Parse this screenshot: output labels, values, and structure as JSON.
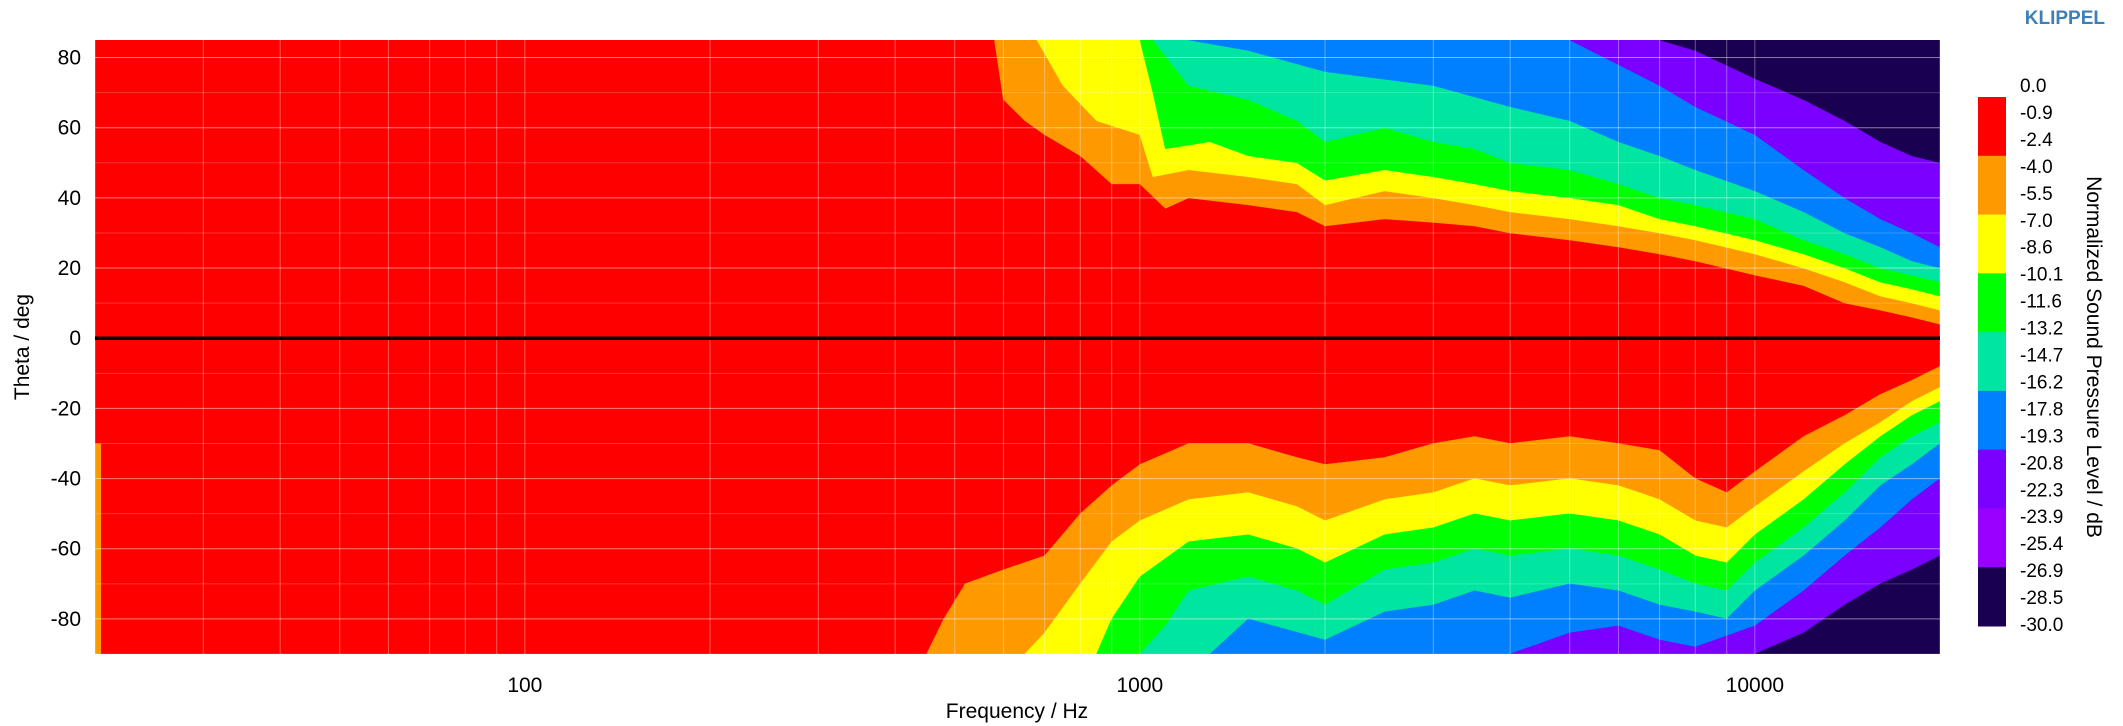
{
  "brand": "KLIPPEL",
  "colors": {
    "red": "#ff0000",
    "orange": "#ff9900",
    "yellow": "#ffff00",
    "green": "#00ff00",
    "teal": "#00e6a0",
    "blue": "#0080ff",
    "violet": "#7a00ff",
    "dark": "#1a0050",
    "zero_line": "#000000"
  },
  "chart_data": {
    "type": "heatmap",
    "title": "",
    "xlabel": "Frequency / Hz",
    "ylabel": "Theta / deg",
    "colorbar_label": "Normalized Sound Pressure Level / dB",
    "x_scale": "log",
    "xlim": [
      20,
      20000
    ],
    "ylim": [
      -90,
      85
    ],
    "x_ticks": [
      {
        "value": 100,
        "label": "100"
      },
      {
        "value": 1000,
        "label": "1000"
      },
      {
        "value": 10000,
        "label": "10000"
      }
    ],
    "y_ticks": [
      {
        "value": 80,
        "label": "80"
      },
      {
        "value": 60,
        "label": "60"
      },
      {
        "value": 40,
        "label": "40"
      },
      {
        "value": 20,
        "label": "20"
      },
      {
        "value": 0,
        "label": "0"
      },
      {
        "value": -20,
        "label": "-20"
      },
      {
        "value": -40,
        "label": "-40"
      },
      {
        "value": -60,
        "label": "-60"
      },
      {
        "value": -80,
        "label": "-80"
      }
    ],
    "grid": true,
    "zero_line": true,
    "color_levels": [
      {
        "range": [
          -2.4,
          0.0
        ],
        "color": "#ff0000"
      },
      {
        "range": [
          -5.5,
          -2.4
        ],
        "color": "#ff9900"
      },
      {
        "range": [
          -8.6,
          -5.5
        ],
        "color": "#ffff00"
      },
      {
        "range": [
          -11.6,
          -8.6
        ],
        "color": "#00ff00"
      },
      {
        "range": [
          -14.7,
          -11.6
        ],
        "color": "#00e6a0"
      },
      {
        "range": [
          -17.8,
          -14.7
        ],
        "color": "#0080ff"
      },
      {
        "range": [
          -20.8,
          -17.8
        ],
        "color": "#7a00ff"
      },
      {
        "range": [
          -23.9,
          -20.8
        ],
        "color": "#9900ff"
      },
      {
        "range": [
          -30.0,
          -23.9
        ],
        "color": "#1a0050"
      }
    ],
    "colorbar_labels": [
      "0.0",
      "-0.9",
      "-2.4",
      "-4.0",
      "-5.5",
      "-7.0",
      "-8.6",
      "-10.1",
      "-11.6",
      "-13.2",
      "-14.7",
      "-16.2",
      "-17.8",
      "-19.3",
      "-20.8",
      "-22.3",
      "-23.9",
      "-25.4",
      "-26.9",
      "-28.5",
      "-30.0"
    ],
    "contours_upper": [
      {
        "level": -2.4,
        "color": "#ff9900",
        "edge": [
          [
            580,
            85
          ],
          [
            600,
            68
          ],
          [
            650,
            62
          ],
          [
            700,
            58
          ],
          [
            800,
            52
          ],
          [
            900,
            44
          ],
          [
            1000,
            44
          ],
          [
            1100,
            37
          ],
          [
            1200,
            40
          ],
          [
            1500,
            38
          ],
          [
            1800,
            36
          ],
          [
            2000,
            32
          ],
          [
            2500,
            34
          ],
          [
            3000,
            33
          ],
          [
            3500,
            32
          ],
          [
            4000,
            30
          ],
          [
            5000,
            28
          ],
          [
            6000,
            26
          ],
          [
            7000,
            24
          ],
          [
            8000,
            22
          ],
          [
            10000,
            18
          ],
          [
            12000,
            15
          ],
          [
            14000,
            10
          ],
          [
            16000,
            8
          ],
          [
            18000,
            6
          ],
          [
            20000,
            4
          ]
        ]
      },
      {
        "level": -5.5,
        "color": "#ffff00",
        "edge": [
          [
            680,
            85
          ],
          [
            750,
            72
          ],
          [
            850,
            62
          ],
          [
            1000,
            58
          ],
          [
            1050,
            46
          ],
          [
            1200,
            48
          ],
          [
            1500,
            46
          ],
          [
            1800,
            44
          ],
          [
            2000,
            38
          ],
          [
            2500,
            42
          ],
          [
            3000,
            40
          ],
          [
            3500,
            38
          ],
          [
            4000,
            36
          ],
          [
            5000,
            34
          ],
          [
            6000,
            32
          ],
          [
            7000,
            30
          ],
          [
            8000,
            28
          ],
          [
            10000,
            24
          ],
          [
            12000,
            20
          ],
          [
            14000,
            16
          ],
          [
            16000,
            12
          ],
          [
            18000,
            10
          ],
          [
            20000,
            8
          ]
        ]
      },
      {
        "level": -8.6,
        "color": "#00ff00",
        "edge": [
          [
            1000,
            85
          ],
          [
            1050,
            70
          ],
          [
            1100,
            54
          ],
          [
            1300,
            56
          ],
          [
            1500,
            52
          ],
          [
            1800,
            50
          ],
          [
            2000,
            45
          ],
          [
            2500,
            48
          ],
          [
            3000,
            46
          ],
          [
            3500,
            44
          ],
          [
            4000,
            42
          ],
          [
            5000,
            40
          ],
          [
            6000,
            38
          ],
          [
            7000,
            34
          ],
          [
            8000,
            32
          ],
          [
            10000,
            28
          ],
          [
            12000,
            24
          ],
          [
            14000,
            20
          ],
          [
            16000,
            16
          ],
          [
            18000,
            14
          ],
          [
            20000,
            12
          ]
        ]
      },
      {
        "level": -11.6,
        "color": "#00e6a0",
        "edge": [
          [
            1050,
            85
          ],
          [
            1200,
            72
          ],
          [
            1500,
            68
          ],
          [
            1800,
            62
          ],
          [
            2000,
            56
          ],
          [
            2500,
            60
          ],
          [
            3000,
            56
          ],
          [
            3500,
            54
          ],
          [
            4000,
            50
          ],
          [
            5000,
            48
          ],
          [
            6000,
            44
          ],
          [
            7000,
            40
          ],
          [
            8000,
            38
          ],
          [
            10000,
            34
          ],
          [
            12000,
            28
          ],
          [
            14000,
            24
          ],
          [
            16000,
            20
          ],
          [
            18000,
            18
          ],
          [
            20000,
            16
          ]
        ]
      },
      {
        "level": -14.7,
        "color": "#0080ff",
        "edge": [
          [
            1200,
            85
          ],
          [
            1500,
            82
          ],
          [
            2000,
            76
          ],
          [
            3000,
            72
          ],
          [
            4000,
            66
          ],
          [
            5000,
            62
          ],
          [
            6000,
            56
          ],
          [
            7000,
            52
          ],
          [
            8000,
            48
          ],
          [
            10000,
            42
          ],
          [
            12000,
            36
          ],
          [
            14000,
            30
          ],
          [
            16000,
            26
          ],
          [
            18000,
            22
          ],
          [
            20000,
            20
          ]
        ]
      },
      {
        "level": -17.8,
        "color": "#7a00ff",
        "edge": [
          [
            5000,
            85
          ],
          [
            6000,
            78
          ],
          [
            7000,
            72
          ],
          [
            8000,
            66
          ],
          [
            10000,
            58
          ],
          [
            12000,
            48
          ],
          [
            14000,
            40
          ],
          [
            16000,
            34
          ],
          [
            18000,
            30
          ],
          [
            20000,
            26
          ]
        ]
      },
      {
        "level": -23.9,
        "color": "#1a0050",
        "edge": [
          [
            7000,
            85
          ],
          [
            8000,
            82
          ],
          [
            10000,
            74
          ],
          [
            12000,
            68
          ],
          [
            14000,
            62
          ],
          [
            16000,
            56
          ],
          [
            18000,
            52
          ],
          [
            20000,
            50
          ]
        ]
      }
    ],
    "contours_lower": [
      {
        "level": -2.4,
        "color": "#ff9900",
        "edge": [
          [
            450,
            -90
          ],
          [
            480,
            -80
          ],
          [
            520,
            -70
          ],
          [
            600,
            -66
          ],
          [
            700,
            -62
          ],
          [
            800,
            -50
          ],
          [
            900,
            -42
          ],
          [
            1000,
            -36
          ],
          [
            1200,
            -30
          ],
          [
            1500,
            -30
          ],
          [
            1800,
            -34
          ],
          [
            2000,
            -36
          ],
          [
            2500,
            -34
          ],
          [
            3000,
            -30
          ],
          [
            3500,
            -28
          ],
          [
            4000,
            -30
          ],
          [
            5000,
            -28
          ],
          [
            6000,
            -30
          ],
          [
            7000,
            -32
          ],
          [
            8000,
            -40
          ],
          [
            9000,
            -44
          ],
          [
            10000,
            -38
          ],
          [
            12000,
            -28
          ],
          [
            14000,
            -22
          ],
          [
            16000,
            -16
          ],
          [
            18000,
            -12
          ],
          [
            20000,
            -8
          ]
        ]
      },
      {
        "level": -5.5,
        "color": "#ffff00",
        "edge": [
          [
            650,
            -90
          ],
          [
            700,
            -84
          ],
          [
            800,
            -70
          ],
          [
            900,
            -58
          ],
          [
            1000,
            -52
          ],
          [
            1200,
            -46
          ],
          [
            1500,
            -44
          ],
          [
            1800,
            -48
          ],
          [
            2000,
            -52
          ],
          [
            2500,
            -46
          ],
          [
            3000,
            -44
          ],
          [
            3500,
            -40
          ],
          [
            4000,
            -42
          ],
          [
            5000,
            -40
          ],
          [
            6000,
            -42
          ],
          [
            7000,
            -46
          ],
          [
            8000,
            -52
          ],
          [
            9000,
            -54
          ],
          [
            10000,
            -48
          ],
          [
            12000,
            -38
          ],
          [
            14000,
            -30
          ],
          [
            16000,
            -24
          ],
          [
            18000,
            -18
          ],
          [
            20000,
            -14
          ]
        ]
      },
      {
        "level": -8.6,
        "color": "#00ff00",
        "edge": [
          [
            850,
            -90
          ],
          [
            900,
            -80
          ],
          [
            1000,
            -68
          ],
          [
            1200,
            -58
          ],
          [
            1500,
            -56
          ],
          [
            1800,
            -60
          ],
          [
            2000,
            -64
          ],
          [
            2500,
            -56
          ],
          [
            3000,
            -54
          ],
          [
            3500,
            -50
          ],
          [
            4000,
            -52
          ],
          [
            5000,
            -50
          ],
          [
            6000,
            -52
          ],
          [
            7000,
            -56
          ],
          [
            8000,
            -62
          ],
          [
            9000,
            -64
          ],
          [
            10000,
            -56
          ],
          [
            12000,
            -46
          ],
          [
            14000,
            -36
          ],
          [
            16000,
            -28
          ],
          [
            18000,
            -22
          ],
          [
            20000,
            -18
          ]
        ]
      },
      {
        "level": -11.6,
        "color": "#00e6a0",
        "edge": [
          [
            1000,
            -90
          ],
          [
            1100,
            -82
          ],
          [
            1200,
            -72
          ],
          [
            1500,
            -68
          ],
          [
            1800,
            -72
          ],
          [
            2000,
            -76
          ],
          [
            2500,
            -66
          ],
          [
            3000,
            -64
          ],
          [
            3500,
            -60
          ],
          [
            4000,
            -62
          ],
          [
            5000,
            -60
          ],
          [
            6000,
            -62
          ],
          [
            7000,
            -66
          ],
          [
            8000,
            -70
          ],
          [
            9000,
            -72
          ],
          [
            10000,
            -64
          ],
          [
            12000,
            -54
          ],
          [
            14000,
            -44
          ],
          [
            16000,
            -34
          ],
          [
            18000,
            -28
          ],
          [
            20000,
            -24
          ]
        ]
      },
      {
        "level": -14.7,
        "color": "#0080ff",
        "edge": [
          [
            1300,
            -90
          ],
          [
            1500,
            -80
          ],
          [
            2000,
            -86
          ],
          [
            2500,
            -78
          ],
          [
            3000,
            -76
          ],
          [
            3500,
            -72
          ],
          [
            4000,
            -74
          ],
          [
            5000,
            -70
          ],
          [
            6000,
            -72
          ],
          [
            7000,
            -76
          ],
          [
            8000,
            -78
          ],
          [
            9000,
            -80
          ],
          [
            10000,
            -72
          ],
          [
            12000,
            -62
          ],
          [
            14000,
            -52
          ],
          [
            16000,
            -42
          ],
          [
            18000,
            -36
          ],
          [
            20000,
            -30
          ]
        ]
      },
      {
        "level": -17.8,
        "color": "#7a00ff",
        "edge": [
          [
            4000,
            -90
          ],
          [
            5000,
            -84
          ],
          [
            6000,
            -82
          ],
          [
            7000,
            -86
          ],
          [
            8000,
            -88
          ],
          [
            10000,
            -82
          ],
          [
            12000,
            -72
          ],
          [
            14000,
            -62
          ],
          [
            16000,
            -54
          ],
          [
            18000,
            -46
          ],
          [
            20000,
            -40
          ]
        ]
      },
      {
        "level": -23.9,
        "color": "#1a0050",
        "edge": [
          [
            10000,
            -90
          ],
          [
            12000,
            -84
          ],
          [
            14000,
            -76
          ],
          [
            16000,
            -70
          ],
          [
            18000,
            -66
          ],
          [
            20000,
            -62
          ]
        ]
      }
    ]
  }
}
